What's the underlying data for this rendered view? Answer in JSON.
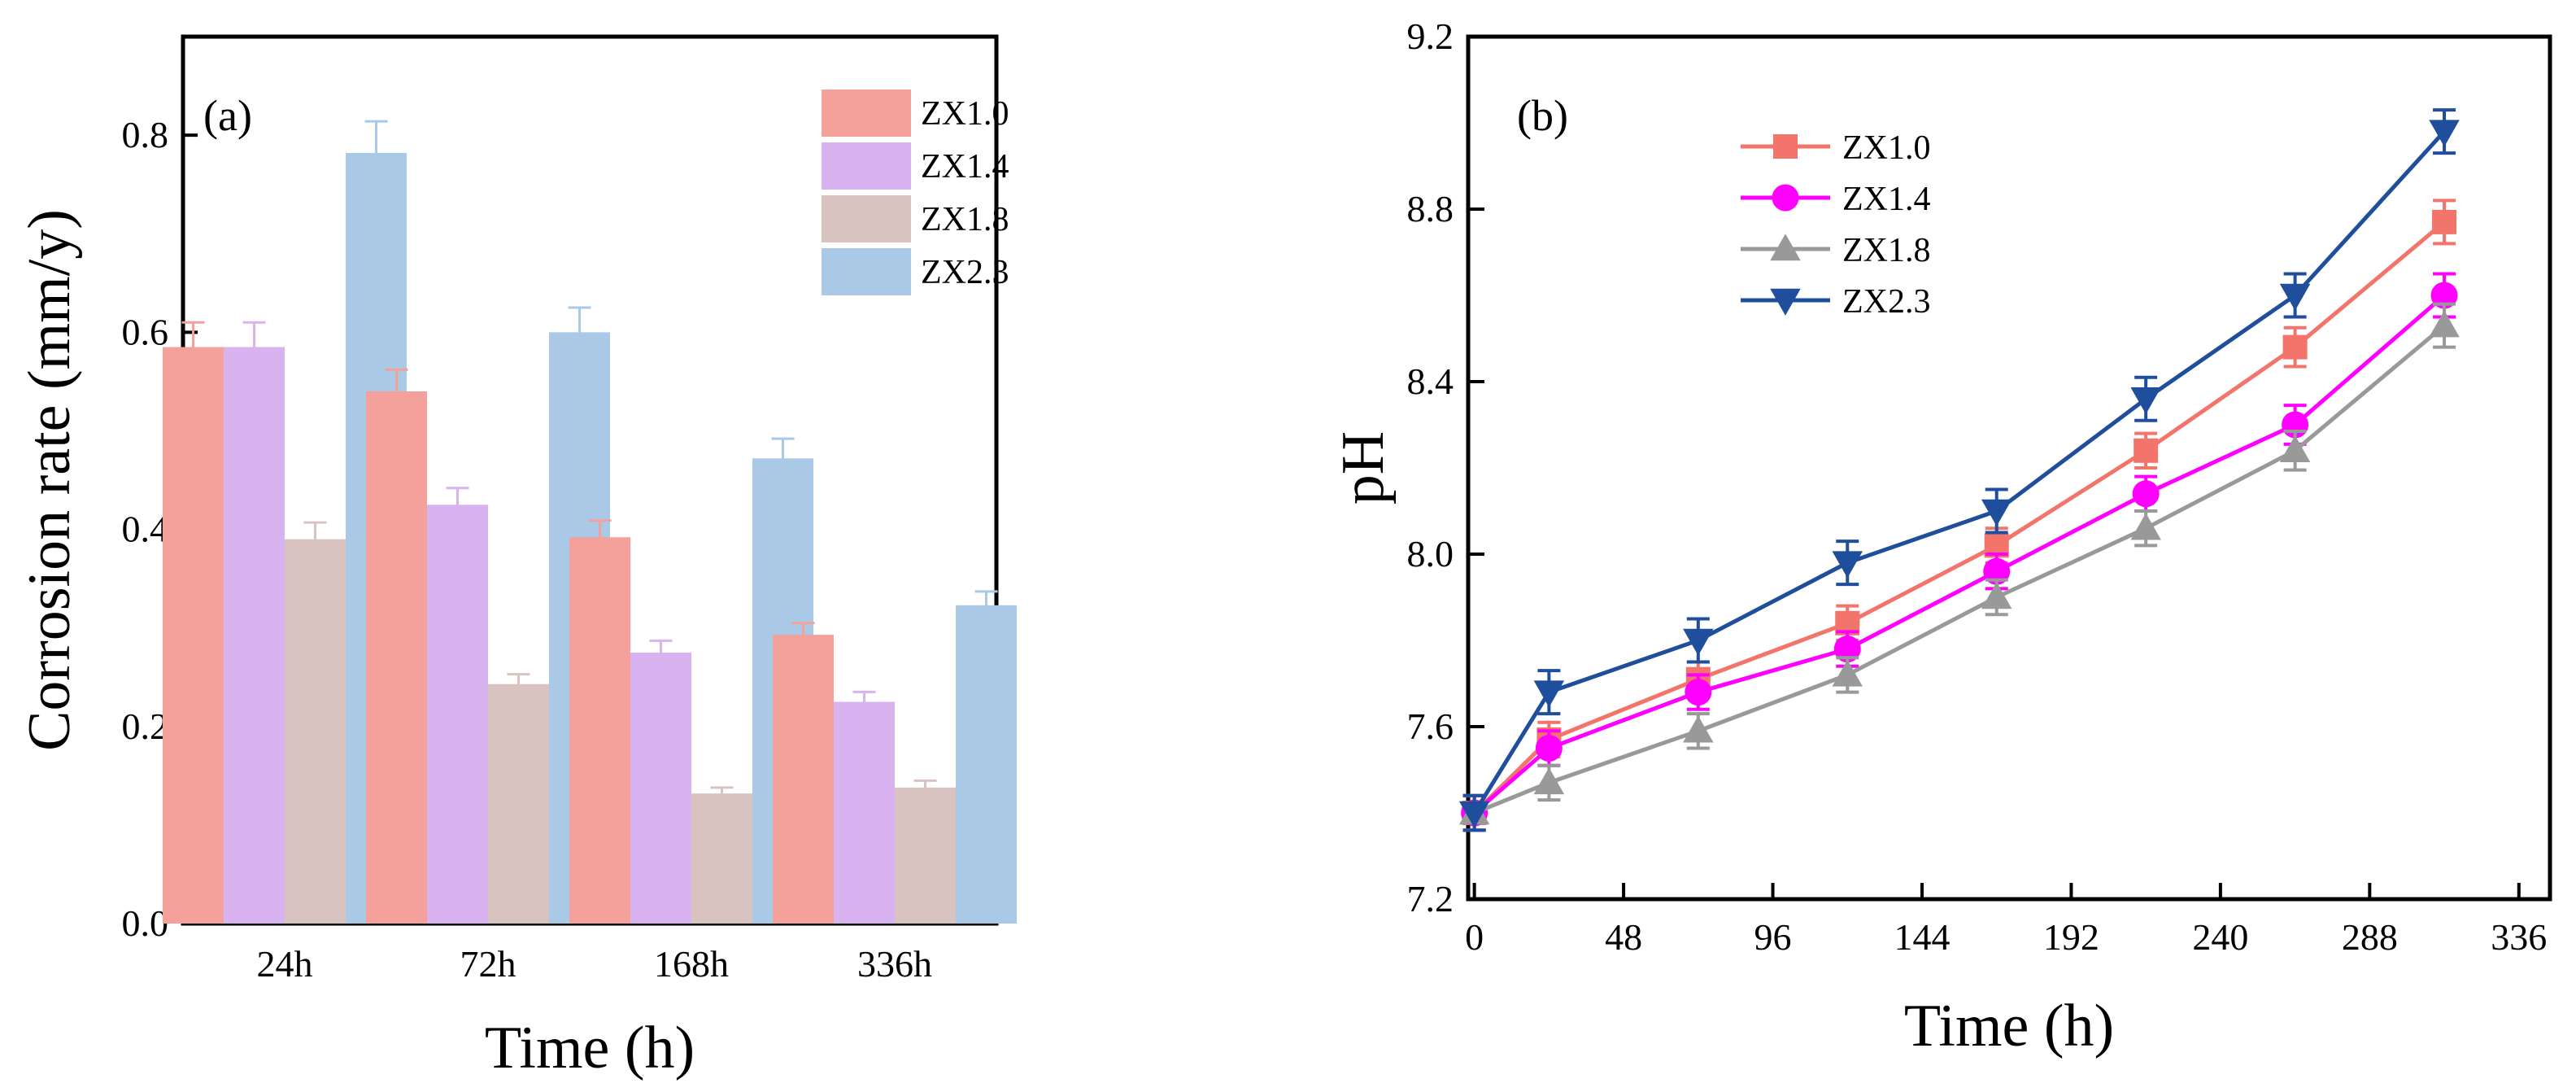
{
  "chart_data": [
    {
      "type": "bar",
      "panel_label": "(a)",
      "title": "",
      "xlabel": "Time (h)",
      "ylabel": "Corrosion rate (mm/y)",
      "ylim": [
        0,
        0.9
      ],
      "yticks": [
        "0.0",
        "0.2",
        "0.4",
        "0.6",
        "0.8"
      ],
      "categories": [
        "24h",
        "72h",
        "168h",
        "336h"
      ],
      "legend_position": "top-right",
      "series": [
        {
          "name": "ZX1.0",
          "color": "#f4a09b",
          "values": [
            0.585,
            0.54,
            0.392,
            0.293
          ],
          "errors": [
            0.025,
            0.022,
            0.017,
            0.012
          ]
        },
        {
          "name": "ZX1.4",
          "color": "#d9b3f0",
          "values": [
            0.585,
            0.425,
            0.275,
            0.225
          ],
          "errors": [
            0.025,
            0.017,
            0.012,
            0.01
          ]
        },
        {
          "name": "ZX1.8",
          "color": "#d9c3c0",
          "values": [
            0.39,
            0.243,
            0.132,
            0.138
          ],
          "errors": [
            0.017,
            0.01,
            0.006,
            0.007
          ]
        },
        {
          "name": "ZX2.3",
          "color": "#a9c9e6",
          "values": [
            0.782,
            0.6,
            0.472,
            0.323
          ],
          "errors": [
            0.032,
            0.025,
            0.02,
            0.014
          ]
        }
      ]
    },
    {
      "type": "line",
      "panel_label": "(b)",
      "title": "",
      "xlabel": "Time (h)",
      "ylabel": "pH",
      "xlim": [
        -2,
        346
      ],
      "ylim": [
        7.2,
        9.2
      ],
      "xticks": [
        "0",
        "48",
        "96",
        "144",
        "192",
        "240",
        "288",
        "336"
      ],
      "yticks": [
        "7.2",
        "7.6",
        "8.0",
        "8.4",
        "8.8",
        "9.2"
      ],
      "x": [
        0,
        24,
        72,
        120,
        168,
        216,
        264,
        312
      ],
      "legend_position": "top-left",
      "series": [
        {
          "name": "ZX1.0",
          "color": "#f2746b",
          "marker": "square",
          "values": [
            7.4,
            7.57,
            7.71,
            7.84,
            8.02,
            8.24,
            8.48,
            8.77
          ],
          "errors": [
            0.04,
            0.04,
            0.04,
            0.04,
            0.04,
            0.04,
            0.045,
            0.05
          ]
        },
        {
          "name": "ZX1.4",
          "color": "#ff00ff",
          "marker": "circle",
          "values": [
            7.4,
            7.55,
            7.68,
            7.78,
            7.96,
            8.14,
            8.3,
            8.6
          ],
          "errors": [
            0.04,
            0.04,
            0.04,
            0.04,
            0.04,
            0.04,
            0.045,
            0.05
          ]
        },
        {
          "name": "ZX1.8",
          "color": "#999999",
          "marker": "triangle-up",
          "values": [
            7.4,
            7.47,
            7.59,
            7.72,
            7.9,
            8.06,
            8.24,
            8.53
          ],
          "errors": [
            0.04,
            0.04,
            0.04,
            0.04,
            0.04,
            0.04,
            0.045,
            0.05
          ]
        },
        {
          "name": "ZX2.3",
          "color": "#1f4e9c",
          "marker": "triangle-down",
          "values": [
            7.4,
            7.68,
            7.8,
            7.98,
            8.1,
            8.36,
            8.6,
            8.98
          ],
          "errors": [
            0.04,
            0.05,
            0.05,
            0.05,
            0.05,
            0.05,
            0.05,
            0.05
          ]
        }
      ]
    }
  ]
}
